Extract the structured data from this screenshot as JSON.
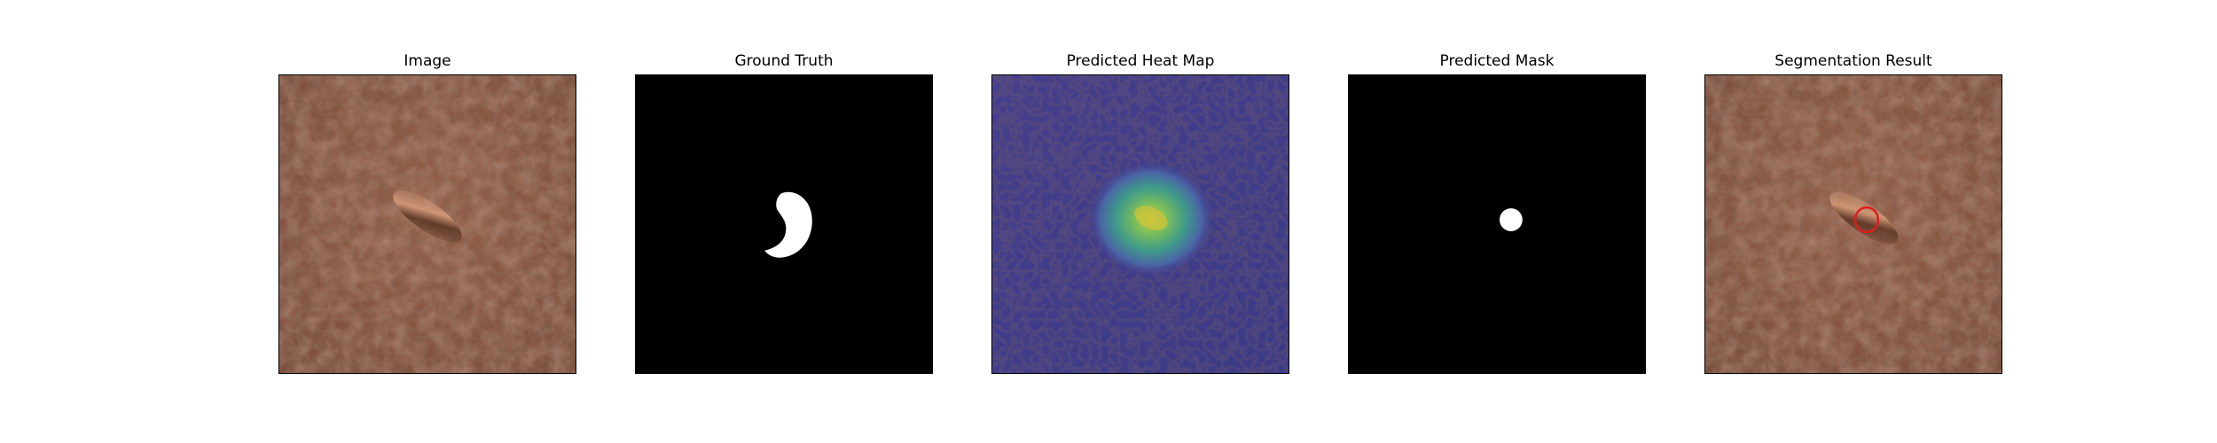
{
  "panels": [
    {
      "title": "Image"
    },
    {
      "title": "Ground Truth"
    },
    {
      "title": "Predicted Heat Map"
    },
    {
      "title": "Predicted Mask"
    },
    {
      "title": "Segmentation Result"
    }
  ],
  "colors": {
    "leather": "#8b5a45",
    "mask_background": "#000000",
    "mask_foreground": "#ffffff",
    "heatmap_base": "#3f3a8c",
    "heatmap_hot": "#c9d23a",
    "contour": "#e11b1b"
  }
}
